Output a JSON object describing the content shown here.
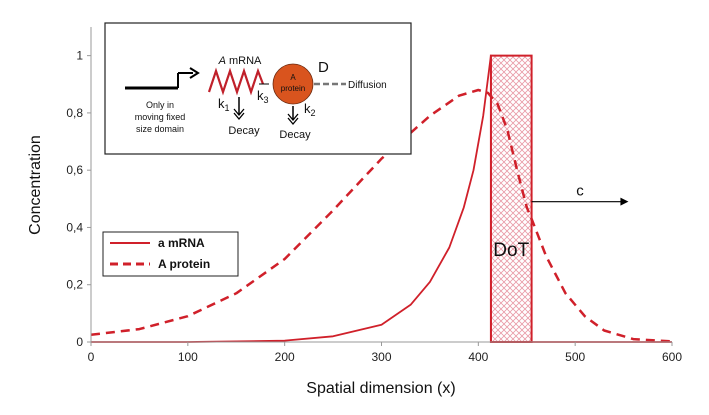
{
  "chart_data": {
    "type": "line",
    "xlabel": "Spatial dimension (x)",
    "ylabel": "Concentration",
    "xlim": [
      0,
      600
    ],
    "ylim": [
      0,
      1.1
    ],
    "x_ticks": [
      "0",
      "100",
      "200",
      "300",
      "400",
      "500",
      "600"
    ],
    "y_ticks": [
      "0",
      "0,2",
      "0,4",
      "0,6",
      "0,8",
      "1"
    ],
    "grid": false,
    "legend_position": "left",
    "color": "#d0202a",
    "series": [
      {
        "name": "a mRNA",
        "style": "solid",
        "points": [
          [
            0,
            0
          ],
          [
            100,
            0
          ],
          [
            150,
            0.002
          ],
          [
            200,
            0.005
          ],
          [
            250,
            0.02
          ],
          [
            300,
            0.06
          ],
          [
            330,
            0.13
          ],
          [
            350,
            0.21
          ],
          [
            370,
            0.33
          ],
          [
            385,
            0.47
          ],
          [
            395,
            0.6
          ],
          [
            405,
            0.79
          ],
          [
            413,
            1
          ],
          [
            413,
            0
          ],
          [
            600,
            0
          ]
        ]
      },
      {
        "name": "A protein",
        "style": "dashed",
        "points": [
          [
            0,
            0.025
          ],
          [
            50,
            0.045
          ],
          [
            100,
            0.09
          ],
          [
            150,
            0.17
          ],
          [
            200,
            0.29
          ],
          [
            250,
            0.46
          ],
          [
            300,
            0.64
          ],
          [
            350,
            0.79
          ],
          [
            380,
            0.86
          ],
          [
            400,
            0.88
          ],
          [
            410,
            0.87
          ],
          [
            420,
            0.83
          ],
          [
            430,
            0.74
          ],
          [
            440,
            0.6
          ],
          [
            450,
            0.47
          ],
          [
            455,
            0.43
          ],
          [
            470,
            0.3
          ],
          [
            490,
            0.17
          ],
          [
            510,
            0.09
          ],
          [
            530,
            0.04
          ],
          [
            560,
            0.01
          ],
          [
            600,
            0.002
          ]
        ]
      }
    ],
    "domain_box": {
      "x_start": 413,
      "x_end": 455,
      "y_top": 1,
      "label": "DoT"
    },
    "arrow": {
      "x_start": 455,
      "x_end": 555,
      "y": 0.49,
      "label": "c"
    }
  },
  "inset": {
    "mrna_label_italic": "A",
    "mrna_label_rest": " mRNA",
    "domain_text_lines": [
      "Only in",
      "moving  fixed",
      "size domain"
    ],
    "k1": "k",
    "k1_sub": "1",
    "k3": "k",
    "k3_sub": "3",
    "k2": "k",
    "k2_sub": "2",
    "protein_line1": "A",
    "protein_line2": "protein",
    "d_label": "D",
    "diffusion_label": "Diffusion",
    "decay_left": "Decay",
    "decay_right": "Decay",
    "protein_color": "#d9541e",
    "zigzag_color": "#c0202a"
  }
}
